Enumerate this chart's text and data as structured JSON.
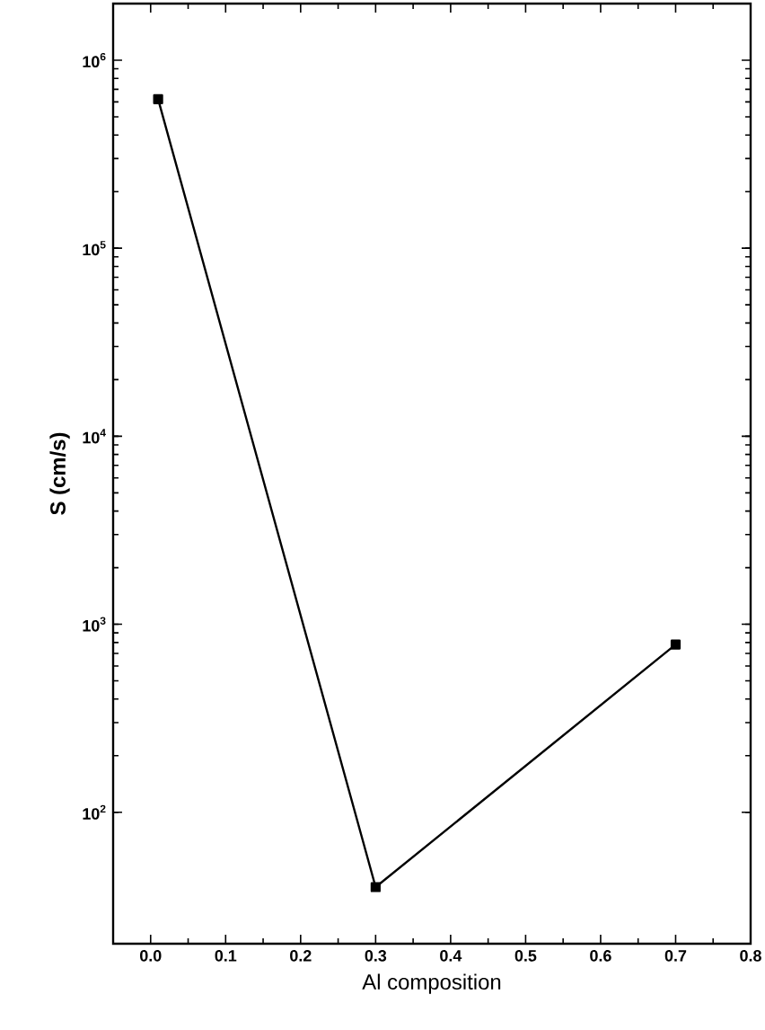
{
  "chart_data": {
    "type": "line",
    "xlabel": "Al composition",
    "ylabel": "S (cm/s)",
    "log": "y",
    "x": [
      0.01,
      0.3,
      0.7
    ],
    "series": [
      {
        "color": "#000000",
        "values": [
          620000,
          40,
          780
        ]
      }
    ],
    "xlim": [
      -0.05,
      0.8
    ],
    "ylim": [
      20,
      2000000
    ],
    "xticks": [
      {
        "value": 0.0,
        "label": "0.0"
      },
      {
        "value": 0.1,
        "label": "0.1"
      },
      {
        "value": 0.2,
        "label": "0.2"
      },
      {
        "value": 0.3,
        "label": "0.3"
      },
      {
        "value": 0.4,
        "label": "0.4"
      },
      {
        "value": 0.5,
        "label": "0.5"
      },
      {
        "value": 0.6,
        "label": "0.6"
      },
      {
        "value": 0.7,
        "label": "0.7"
      },
      {
        "value": 0.8,
        "label": "0.8"
      }
    ],
    "yticks": [
      {
        "value": 100,
        "label": "10$^{2}$"
      },
      {
        "value": 1000,
        "label": "10$^{3}$"
      },
      {
        "value": 10000,
        "label": "10$^{4}$"
      },
      {
        "value": 100000,
        "label": "10$^{5}$"
      },
      {
        "value": 1000000,
        "label": "10$^{6}$"
      }
    ],
    "marker": "square",
    "line_style": "solid",
    "grid": false
  }
}
